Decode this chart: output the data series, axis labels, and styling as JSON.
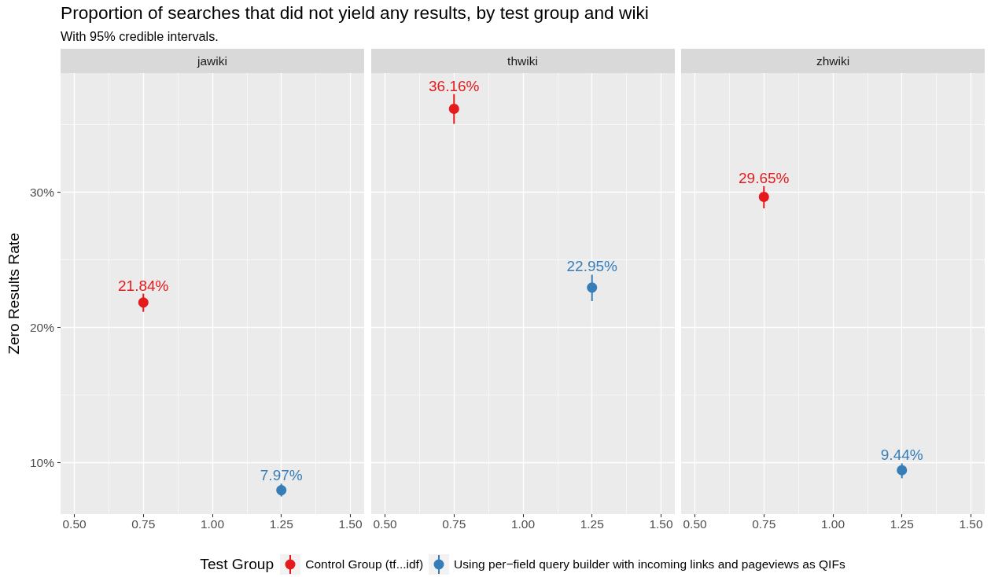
{
  "chart_data": [
    {
      "type": "scatter",
      "title": "Proportion of searches that did not yield any results, by test group and wiki",
      "subtitle": "With 95% credible intervals.",
      "ylabel": "Zero Results Rate",
      "legend_title": "Test Group",
      "legend": "bottom",
      "annotations": [
        "jawiki"
      ],
      "marker": "circle",
      "grid": true,
      "categories": [
        "0.50",
        "0.75",
        "1.00",
        "1.25",
        "1.50"
      ],
      "ylim": [
        6.2,
        38.8
      ],
      "yticks": [
        {
          "value": 10,
          "label": "10%"
        },
        {
          "value": 15,
          "label": null
        },
        {
          "value": 20,
          "label": "20%"
        },
        {
          "value": 25,
          "label": null
        },
        {
          "value": 30,
          "label": "30%"
        },
        {
          "value": 35,
          "label": null
        }
      ],
      "series": [
        {
          "name": "Control Group (tf...idf)",
          "color": "#e41a1c",
          "values": [
            null,
            21.84,
            null,
            null,
            null
          ],
          "errors": [
            null,
            [
              21.15,
              22.5
            ],
            null,
            null,
            null
          ],
          "value_labels": [
            null,
            "21.84%",
            null,
            null,
            null
          ]
        },
        {
          "name": "Using per−field query builder with incoming links and pageviews as QIFs",
          "color": "#377eb8",
          "values": [
            null,
            null,
            null,
            7.97,
            null
          ],
          "errors": [
            null,
            null,
            null,
            [
              7.5,
              8.45
            ],
            null
          ],
          "value_labels": [
            null,
            null,
            null,
            "7.97%",
            null
          ]
        }
      ]
    },
    {
      "type": "scatter",
      "annotations": [
        "thwiki"
      ],
      "marker": "circle",
      "grid": true,
      "tick_labels": "x",
      "categories": [
        "0.50",
        "0.75",
        "1.00",
        "1.25",
        "1.50"
      ],
      "ylim": [
        6.2,
        38.8
      ],
      "yticks": [
        10,
        {
          "value": 15,
          "label": null
        },
        20,
        {
          "value": 25,
          "label": null
        },
        30,
        {
          "value": 35,
          "label": null
        }
      ],
      "series": [
        {
          "color": "#e41a1c",
          "values": [
            null,
            36.16,
            null,
            null,
            null
          ],
          "errors": [
            null,
            [
              35.05,
              37.25
            ],
            null,
            null,
            null
          ],
          "value_labels": [
            null,
            "36.16%",
            null,
            null,
            null
          ]
        },
        {
          "color": "#377eb8",
          "values": [
            null,
            null,
            null,
            22.95,
            null
          ],
          "errors": [
            null,
            null,
            null,
            [
              21.95,
              23.9
            ],
            null
          ],
          "value_labels": [
            null,
            null,
            null,
            "22.95%",
            null
          ]
        }
      ]
    },
    {
      "type": "scatter",
      "annotations": [
        "zhwiki"
      ],
      "marker": "circle",
      "grid": true,
      "tick_labels": "x",
      "categories": [
        "0.50",
        "0.75",
        "1.00",
        "1.25",
        "1.50"
      ],
      "ylim": [
        6.2,
        38.8
      ],
      "yticks": [
        10,
        {
          "value": 15,
          "label": null
        },
        20,
        {
          "value": 25,
          "label": null
        },
        30,
        {
          "value": 35,
          "label": null
        }
      ],
      "series": [
        {
          "color": "#e41a1c",
          "values": [
            null,
            29.65,
            null,
            null,
            null
          ],
          "errors": [
            null,
            [
              28.8,
              30.45
            ],
            null,
            null,
            null
          ],
          "value_labels": [
            null,
            "29.65%",
            null,
            null,
            null
          ]
        },
        {
          "color": "#377eb8",
          "values": [
            null,
            null,
            null,
            9.44,
            null
          ],
          "errors": [
            null,
            null,
            null,
            [
              8.85,
              9.95
            ],
            null
          ],
          "value_labels": [
            null,
            null,
            null,
            "9.44%",
            null
          ]
        }
      ]
    }
  ]
}
